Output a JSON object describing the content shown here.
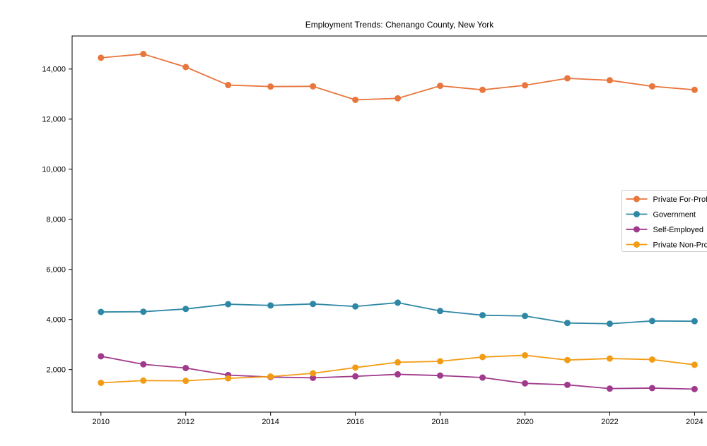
{
  "chart_data": {
    "type": "line",
    "title": "Employment Trends: Chenango County, New York",
    "xlabel": "",
    "ylabel": "",
    "x": [
      2010,
      2011,
      2012,
      2013,
      2014,
      2015,
      2016,
      2017,
      2018,
      2019,
      2020,
      2021,
      2022,
      2023,
      2024
    ],
    "series": [
      {
        "name": "Private For-Profit",
        "color": "#e8763d",
        "values": [
          14450,
          14600,
          14080,
          13360,
          13300,
          13310,
          12770,
          12830,
          13330,
          13170,
          13350,
          13630,
          13550,
          13310,
          13170
        ]
      },
      {
        "name": "Government",
        "color": "#2e87a5",
        "values": [
          4300,
          4310,
          4420,
          4610,
          4560,
          4620,
          4520,
          4670,
          4340,
          4170,
          4140,
          3860,
          3830,
          3940,
          3930
        ]
      },
      {
        "name": "Self-Employed",
        "color": "#a03a8c",
        "values": [
          2530,
          2210,
          2060,
          1780,
          1700,
          1670,
          1730,
          1810,
          1760,
          1680,
          1450,
          1390,
          1240,
          1260,
          1220
        ]
      },
      {
        "name": "Private Non-Profit",
        "color": "#f29c15",
        "values": [
          1470,
          1560,
          1550,
          1650,
          1720,
          1850,
          2080,
          2290,
          2330,
          2500,
          2570,
          2380,
          2440,
          2400,
          2190
        ]
      }
    ],
    "xticks": [
      2010,
      2012,
      2014,
      2016,
      2018,
      2020,
      2022,
      2024
    ],
    "xtick_labels": [
      "2010",
      "2012",
      "2014",
      "2016",
      "2018",
      "2020",
      "2022",
      "2024"
    ],
    "yticks": [
      2000,
      4000,
      6000,
      8000,
      10000,
      12000,
      14000
    ],
    "ytick_labels": [
      "2,000",
      "4,000",
      "6,000",
      "8,000",
      "10,000",
      "12,000",
      "14,000"
    ],
    "xlim": [
      2009.32,
      2024.76
    ],
    "ylim": [
      300,
      15320
    ],
    "grid": false,
    "legend_position": "center-right",
    "axis_color": "#000000",
    "legend_border_color": "#cccccc",
    "background_color": "#ffffff"
  }
}
